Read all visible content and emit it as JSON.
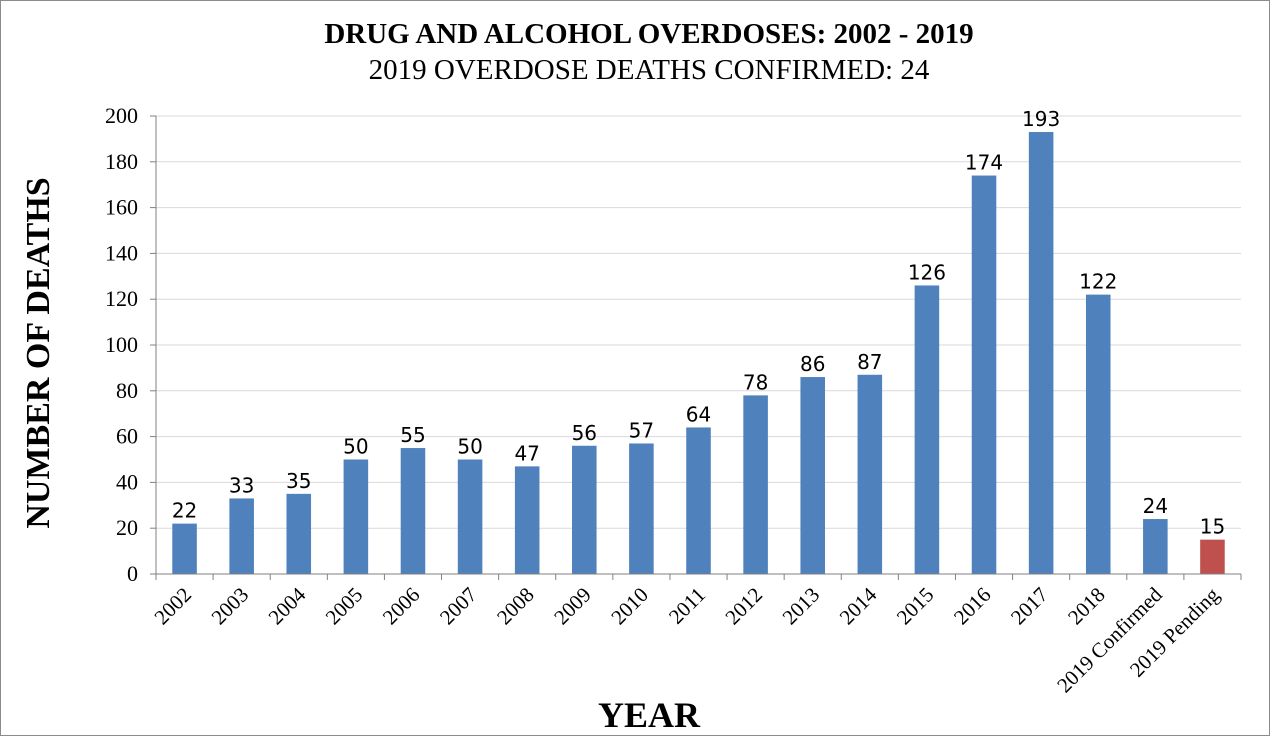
{
  "chart_data": {
    "type": "bar",
    "title": "DRUG AND ALCOHOL OVERDOSES: 2002 - 2019",
    "subtitle": "2019 OVERDOSE DEATHS CONFIRMED: 24",
    "xlabel": "YEAR",
    "ylabel": "NUMBER OF DEATHS",
    "categories": [
      "2002",
      "2003",
      "2004",
      "2005",
      "2006",
      "2007",
      "2008",
      "2009",
      "2010",
      "2011",
      "2012",
      "2013",
      "2014",
      "2015",
      "2016",
      "2017",
      "2018",
      "2019 Confirmed",
      "2019 Pending"
    ],
    "values": [
      22,
      33,
      35,
      50,
      55,
      50,
      47,
      56,
      57,
      64,
      78,
      86,
      87,
      126,
      174,
      193,
      122,
      24,
      15
    ],
    "data_labels": [
      "22",
      "33",
      "35",
      "50",
      "55",
      "50",
      "47",
      "56",
      "57",
      "64",
      "78",
      "86",
      "87",
      "126",
      "174",
      "193",
      "122",
      "24",
      "15"
    ],
    "bar_colors": [
      "#4f81bd",
      "#4f81bd",
      "#4f81bd",
      "#4f81bd",
      "#4f81bd",
      "#4f81bd",
      "#4f81bd",
      "#4f81bd",
      "#4f81bd",
      "#4f81bd",
      "#4f81bd",
      "#4f81bd",
      "#4f81bd",
      "#4f81bd",
      "#4f81bd",
      "#4f81bd",
      "#4f81bd",
      "#4f81bd",
      "#c0504d"
    ],
    "ylim": [
      0,
      200
    ],
    "yticks": [
      0,
      20,
      40,
      60,
      80,
      100,
      120,
      140,
      160,
      180,
      200
    ],
    "ytick_labels": [
      "0",
      "20",
      "40",
      "60",
      "80",
      "100",
      "120",
      "140",
      "160",
      "180",
      "200"
    ],
    "grid": true,
    "gridline_color": "#d9d9d9",
    "legend": "none"
  }
}
